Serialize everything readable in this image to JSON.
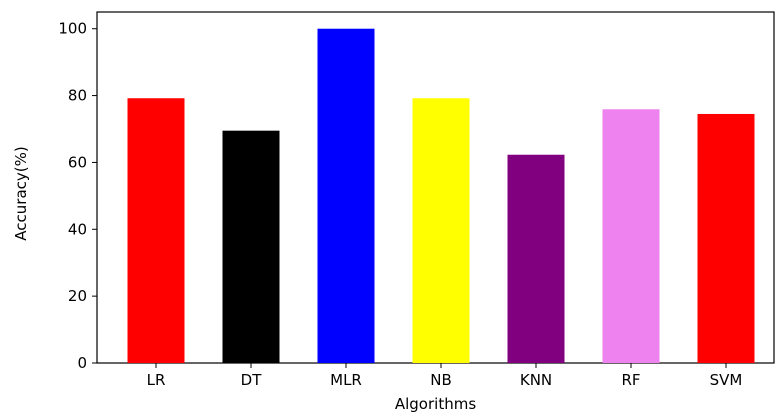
{
  "chart_data": {
    "type": "bar",
    "title": "",
    "xlabel": "Algorithms",
    "ylabel": "Accuracy(%)",
    "categories": [
      "LR",
      "DT",
      "MLR",
      "NB",
      "KNN",
      "RF",
      "SVM"
    ],
    "values": [
      79.2,
      69.5,
      100,
      79.2,
      62.3,
      75.9,
      74.5
    ],
    "colors": [
      "#ff0000",
      "#000000",
      "#0000ff",
      "#ffff00",
      "#800080",
      "#ee82ee",
      "#ff0000"
    ],
    "ylim": [
      0,
      105
    ],
    "yticks": [
      0,
      20,
      40,
      60,
      80,
      100
    ],
    "grid": false,
    "legend": "none"
  }
}
